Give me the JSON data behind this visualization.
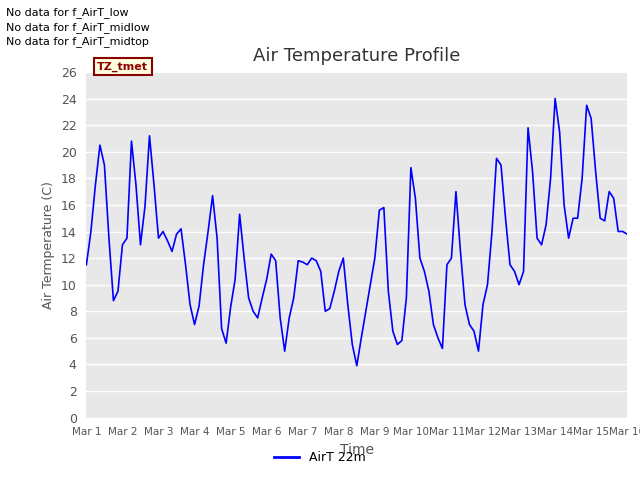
{
  "title": "Air Temperature Profile",
  "xlabel": "Time",
  "ylabel": "Air Termperature (C)",
  "ylim": [
    0,
    26
  ],
  "yticks": [
    0,
    2,
    4,
    6,
    8,
    10,
    12,
    14,
    16,
    18,
    20,
    22,
    24,
    26
  ],
  "line_color": "#0000FF",
  "line_label": "AirT 22m",
  "plot_bg_color": "#E8E8E8",
  "fig_bg_color": "#FFFFFF",
  "annotations": [
    "No data for f_AirT_low",
    "No data for f_AirT_midlow",
    "No data for f_AirT_midtop"
  ],
  "tz_label": "TZ_tmet",
  "x_tick_labels": [
    "Mar 1",
    "Mar 2",
    "Mar 3",
    "Mar 4",
    "Mar 5",
    "Mar 6",
    "Mar 7",
    "Mar 8",
    "Mar 9",
    "Mar 10",
    "Mar 11",
    "Mar 12",
    "Mar 13",
    "Mar 14",
    "Mar 15",
    "Mar 16"
  ],
  "time_values": [
    0.0,
    0.125,
    0.25,
    0.375,
    0.5,
    0.625,
    0.75,
    0.875,
    1.0,
    1.125,
    1.25,
    1.375,
    1.5,
    1.625,
    1.75,
    1.875,
    2.0,
    2.125,
    2.25,
    2.375,
    2.5,
    2.625,
    2.75,
    2.875,
    3.0,
    3.125,
    3.25,
    3.375,
    3.5,
    3.625,
    3.75,
    3.875,
    4.0,
    4.125,
    4.25,
    4.375,
    4.5,
    4.625,
    4.75,
    4.875,
    5.0,
    5.125,
    5.25,
    5.375,
    5.5,
    5.625,
    5.75,
    5.875,
    6.0,
    6.125,
    6.25,
    6.375,
    6.5,
    6.625,
    6.75,
    6.875,
    7.0,
    7.125,
    7.25,
    7.375,
    7.5,
    7.625,
    7.75,
    7.875,
    8.0,
    8.125,
    8.25,
    8.375,
    8.5,
    8.625,
    8.75,
    8.875,
    9.0,
    9.125,
    9.25,
    9.375,
    9.5,
    9.625,
    9.75,
    9.875,
    10.0,
    10.125,
    10.25,
    10.375,
    10.5,
    10.625,
    10.75,
    10.875,
    11.0,
    11.125,
    11.25,
    11.375,
    11.5,
    11.625,
    11.75,
    11.875,
    12.0,
    12.125,
    12.25,
    12.375,
    12.5,
    12.625,
    12.75,
    12.875,
    13.0,
    13.125,
    13.25,
    13.375,
    13.5,
    13.625,
    13.75,
    13.875,
    14.0,
    14.125,
    14.25,
    14.375,
    14.5,
    14.625,
    14.75,
    14.875,
    15.0
  ],
  "temp_values": [
    11.5,
    14.0,
    17.5,
    20.5,
    19.0,
    13.5,
    8.8,
    9.5,
    13.0,
    13.5,
    20.8,
    17.5,
    13.0,
    15.9,
    21.2,
    17.5,
    13.5,
    14.0,
    13.3,
    12.5,
    13.8,
    14.2,
    11.5,
    8.5,
    7.0,
    8.4,
    11.5,
    14.0,
    16.7,
    13.5,
    6.7,
    5.6,
    8.3,
    10.4,
    15.3,
    12.0,
    9.0,
    8.0,
    7.5,
    9.0,
    10.4,
    12.3,
    11.8,
    7.5,
    5.0,
    7.5,
    9.0,
    11.8,
    11.7,
    11.5,
    12.0,
    11.8,
    11.0,
    8.0,
    8.2,
    9.5,
    11.0,
    12.0,
    8.5,
    5.5,
    3.9,
    6.0,
    8.0,
    10.0,
    12.0,
    15.6,
    15.8,
    9.5,
    6.5,
    5.5,
    5.8,
    9.0,
    18.8,
    16.5,
    12.0,
    11.0,
    9.5,
    7.0,
    6.0,
    5.2,
    11.5,
    12.0,
    17.0,
    12.5,
    8.5,
    7.0,
    6.5,
    5.0,
    8.5,
    10.0,
    14.0,
    19.5,
    19.0,
    15.0,
    11.5,
    11.0,
    10.0,
    11.0,
    21.8,
    18.5,
    13.5,
    13.0,
    14.5,
    18.0,
    24.0,
    21.5,
    16.0,
    13.5,
    15.0,
    15.0,
    18.0,
    23.5,
    22.5,
    18.5,
    15.0,
    14.8,
    17.0,
    16.5,
    14.0,
    14.0,
    13.8
  ]
}
